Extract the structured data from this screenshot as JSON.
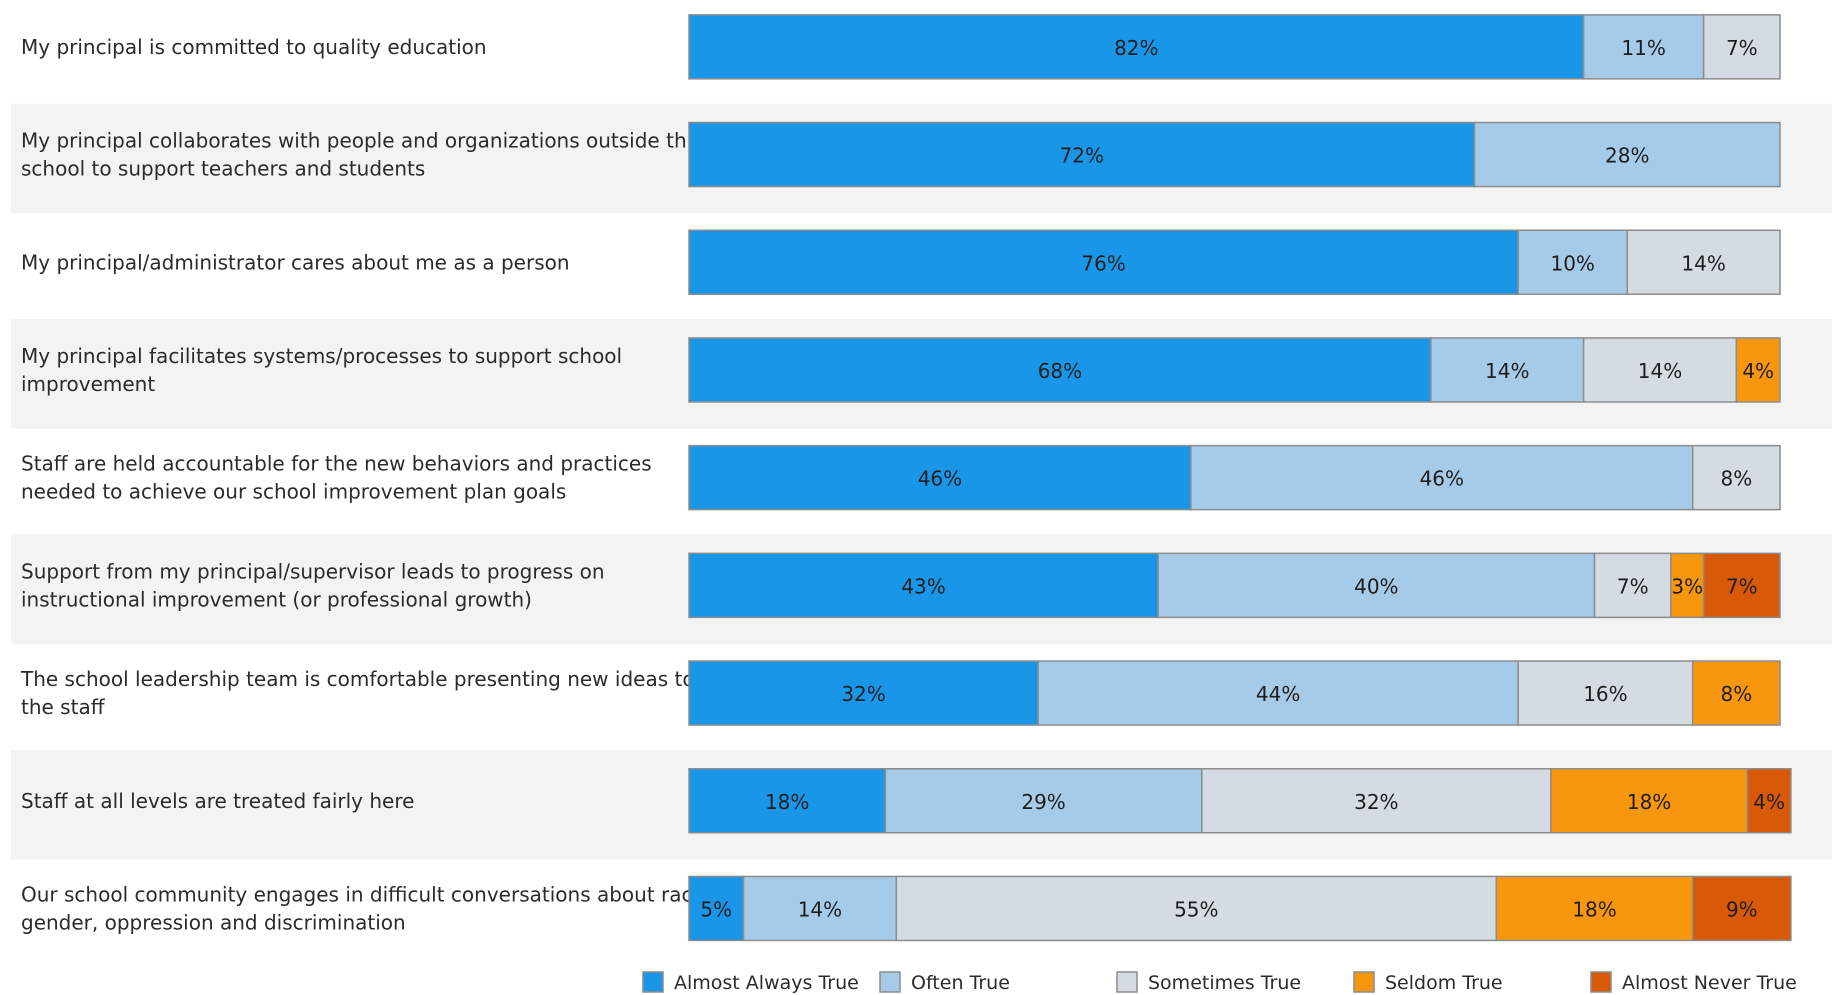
{
  "chart_data": {
    "type": "bar",
    "orientation": "horizontal",
    "stacked": true,
    "normalized_to": 100,
    "xlim": [
      0,
      100
    ],
    "grid": false,
    "legend_position": "bottom",
    "categories": [
      "My principal is committed to quality education",
      "My principal collaborates with people and organizations outside this school to support teachers and students",
      "My principal/administrator cares about me as a person",
      "My principal facilitates systems/processes to support school improvement",
      "Staff are held accountable for the new behaviors and practices needed to achieve our school improvement plan goals",
      "Support from my principal/supervisor leads to progress on instructional improvement (or professional growth)",
      "The school leadership team is comfortable presenting new ideas to the staff",
      "Staff at all levels are treated fairly here",
      "Our school community engages in difficult conversations about race, gender, oppression and discrimination"
    ],
    "category_lines": [
      [
        "My principal is committed to quality education"
      ],
      [
        "My principal collaborates with people and organizations outside this",
        "school to support teachers and students"
      ],
      [
        "My principal/administrator cares about me as a person"
      ],
      [
        "My principal facilitates systems/processes to support school",
        "improvement"
      ],
      [
        "Staff are held accountable for the new behaviors and practices",
        "needed to achieve our school improvement plan goals"
      ],
      [
        "Support from my principal/supervisor leads to progress on",
        "instructional improvement (or professional growth)"
      ],
      [
        "The school leadership team is comfortable presenting new ideas to",
        "the staff"
      ],
      [
        "Staff at all levels are treated fairly here"
      ],
      [
        "Our school community engages in difficult conversations about race,",
        "gender, oppression and discrimination"
      ]
    ],
    "series": [
      {
        "name": "Almost Always True",
        "color": "#1a96e8",
        "values": [
          82,
          72,
          76,
          68,
          46,
          43,
          32,
          18,
          5
        ]
      },
      {
        "name": "Often True",
        "color": "#a5cbe9",
        "values": [
          11,
          28,
          10,
          14,
          46,
          40,
          44,
          29,
          14
        ]
      },
      {
        "name": "Sometimes True",
        "color": "#d4dbe3",
        "values": [
          7,
          0,
          14,
          14,
          8,
          7,
          16,
          32,
          55
        ]
      },
      {
        "name": "Seldom True",
        "color": "#f8960e",
        "values": [
          0,
          0,
          0,
          4,
          0,
          3,
          8,
          18,
          18
        ]
      },
      {
        "name": "Almost Never True",
        "color": "#d85a09",
        "values": [
          0,
          0,
          0,
          0,
          0,
          7,
          0,
          4,
          9
        ]
      }
    ],
    "value_suffix": "%"
  }
}
